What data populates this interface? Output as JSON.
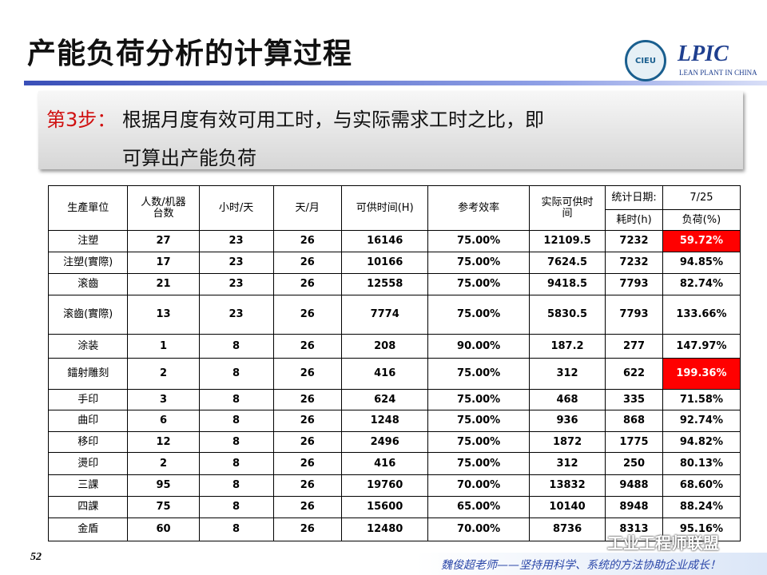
{
  "header": {
    "title": "产能负荷分析的计算过程",
    "logo_left": "CIEU",
    "logo_right": "LPIC",
    "logo_right_sub": "LEAN PLANT IN CHINA"
  },
  "step": {
    "label": "第3步：",
    "line1": "根据月度有效可用工时，与实际需求工时之比，即",
    "line2": "可算出产能负荷"
  },
  "table": {
    "header": [
      "生產單位",
      "人数/机器台数",
      "小时/天",
      "天/月",
      "可供时间(H)",
      "参考效率",
      "实际可供时间",
      "统计日期:",
      "7/25"
    ],
    "subheader": [
      "耗时(h)",
      "负荷(%)"
    ],
    "alert_color": "#ff0000",
    "rows": [
      {
        "cells": [
          "注塑",
          "27",
          "23",
          "26",
          "16146",
          "75.00%",
          "12109.5",
          "7232",
          "59.72%"
        ],
        "alert": true
      },
      {
        "cells": [
          "注塑(實際)",
          "17",
          "23",
          "26",
          "10166",
          "75.00%",
          "7624.5",
          "7232",
          "94.85%"
        ]
      },
      {
        "cells": [
          "滚齒",
          "21",
          "23",
          "26",
          "12558",
          "75.00%",
          "9418.5",
          "7793",
          "82.74%"
        ]
      },
      {
        "cells": [
          "滚齒(實際)",
          "13",
          "23",
          "26",
          "7774",
          "75.00%",
          "5830.5",
          "7793",
          "133.66%"
        ]
      },
      {
        "cells": [
          "涂装",
          "1",
          "8",
          "26",
          "208",
          "90.00%",
          "187.2",
          "277",
          "147.97%"
        ]
      },
      {
        "cells": [
          "鐳射雕刻",
          "2",
          "8",
          "26",
          "416",
          "75.00%",
          "312",
          "622",
          "199.36%"
        ],
        "alert": true
      },
      {
        "cells": [
          "手印",
          "3",
          "8",
          "26",
          "624",
          "75.00%",
          "468",
          "335",
          "71.58%"
        ]
      },
      {
        "cells": [
          "曲印",
          "6",
          "8",
          "26",
          "1248",
          "75.00%",
          "936",
          "868",
          "92.74%"
        ]
      },
      {
        "cells": [
          "移印",
          "12",
          "8",
          "26",
          "2496",
          "75.00%",
          "1872",
          "1775",
          "94.82%"
        ]
      },
      {
        "cells": [
          "燙印",
          "2",
          "8",
          "26",
          "416",
          "75.00%",
          "312",
          "250",
          "80.13%"
        ]
      },
      {
        "cells": [
          "三課",
          "95",
          "8",
          "26",
          "19760",
          "70.00%",
          "13832",
          "9488",
          "68.60%"
        ]
      },
      {
        "cells": [
          "四課",
          "75",
          "8",
          "26",
          "15600",
          "65.00%",
          "10140",
          "8948",
          "88.24%"
        ]
      },
      {
        "cells": [
          "金盾",
          "60",
          "8",
          "26",
          "12480",
          "70.00%",
          "8736",
          "8313",
          "95.16%"
        ]
      }
    ]
  },
  "footer": {
    "page": "52",
    "slogan": "魏俊超老师——坚持用科学、系统的方法协助企业成长！",
    "watermark": "工业工程师联盟"
  }
}
